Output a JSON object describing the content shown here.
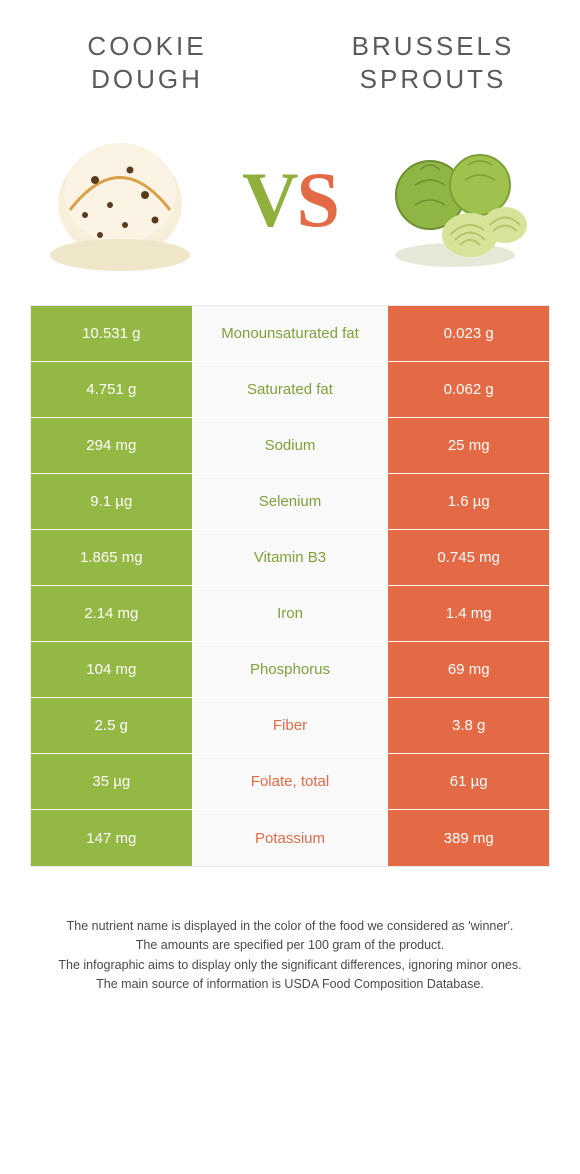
{
  "header": {
    "left_title": "COOKIE DOUGH",
    "right_title": "BRUSSELS SPROUTS",
    "vs_v": "V",
    "vs_s": "S"
  },
  "palette": {
    "left_bg": "#93b843",
    "right_bg": "#e46a46",
    "left_text": "#7fa138",
    "right_text": "#e46a46",
    "mid_bg": "#f9f9f9"
  },
  "table": {
    "rows": [
      {
        "left": "10.531 g",
        "label": "Monounsaturated fat",
        "right": "0.023 g",
        "winner": "left"
      },
      {
        "left": "4.751 g",
        "label": "Saturated fat",
        "right": "0.062 g",
        "winner": "left"
      },
      {
        "left": "294 mg",
        "label": "Sodium",
        "right": "25 mg",
        "winner": "left"
      },
      {
        "left": "9.1 µg",
        "label": "Selenium",
        "right": "1.6 µg",
        "winner": "left"
      },
      {
        "left": "1.865 mg",
        "label": "Vitamin B3",
        "right": "0.745 mg",
        "winner": "left"
      },
      {
        "left": "2.14 mg",
        "label": "Iron",
        "right": "1.4 mg",
        "winner": "left"
      },
      {
        "left": "104 mg",
        "label": "Phosphorus",
        "right": "69 mg",
        "winner": "left"
      },
      {
        "left": "2.5 g",
        "label": "Fiber",
        "right": "3.8 g",
        "winner": "right"
      },
      {
        "left": "35 µg",
        "label": "Folate, total",
        "right": "61 µg",
        "winner": "right"
      },
      {
        "left": "147 mg",
        "label": "Potassium",
        "right": "389 mg",
        "winner": "right"
      }
    ]
  },
  "footer": {
    "line1": "The nutrient name is displayed in the color of the food we considered as 'winner'.",
    "line2": "The amounts are specified per 100 gram of the product.",
    "line3": "The infographic aims to display only the significant differences, ignoring minor ones.",
    "line4": "The main source of information is USDA Food Composition Database."
  }
}
